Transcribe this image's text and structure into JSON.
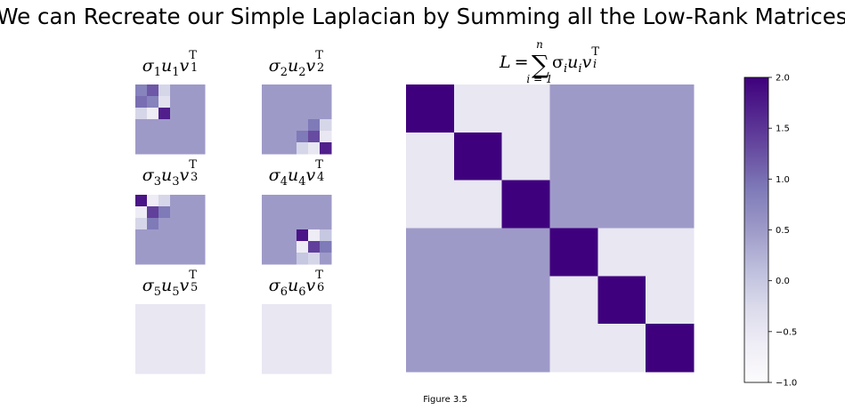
{
  "figure": {
    "title": "We can Recreate our Simple Laplacian by Summing all the Low-Rank Matrices",
    "caption": "Figure 3.5"
  },
  "colormap": {
    "name": "Purples",
    "stops": [
      "#fcfbfd",
      "#efedf5",
      "#dadaeb",
      "#bcbddc",
      "#9e9ac8",
      "#807dba",
      "#6a51a3",
      "#54278f",
      "#3f007d"
    ],
    "vmin": -1,
    "vmax": 2
  },
  "chart_data": {
    "type": "heatmap",
    "small_panels": [
      {
        "sigma_sub": "1",
        "u_sub": "1",
        "v_sub": "1",
        "matrix": [
          [
            0.8,
            1.2,
            -0.2,
            0.5,
            0.5,
            0.5
          ],
          [
            1.0,
            0.8,
            -0.4,
            0.5,
            0.5,
            0.5
          ],
          [
            -0.2,
            -0.6,
            1.7,
            0.5,
            0.5,
            0.5
          ],
          [
            0.5,
            0.5,
            0.5,
            0.5,
            0.5,
            0.5
          ],
          [
            0.5,
            0.5,
            0.5,
            0.5,
            0.5,
            0.5
          ],
          [
            0.5,
            0.5,
            0.5,
            0.5,
            0.5,
            0.5
          ]
        ]
      },
      {
        "sigma_sub": "2",
        "u_sub": "2",
        "v_sub": "2",
        "matrix": [
          [
            0.5,
            0.5,
            0.5,
            0.5,
            0.5,
            0.5
          ],
          [
            0.5,
            0.5,
            0.5,
            0.5,
            0.5,
            0.5
          ],
          [
            0.5,
            0.5,
            0.5,
            0.5,
            0.5,
            0.5
          ],
          [
            0.5,
            0.5,
            0.5,
            0.5,
            0.9,
            -0.2
          ],
          [
            0.5,
            0.5,
            0.5,
            0.9,
            1.3,
            -0.5
          ],
          [
            0.5,
            0.5,
            0.5,
            -0.2,
            -0.5,
            1.7
          ]
        ]
      },
      {
        "sigma_sub": "3",
        "u_sub": "3",
        "v_sub": "3",
        "matrix": [
          [
            1.8,
            -0.6,
            -0.2,
            0.5,
            0.5,
            0.5
          ],
          [
            -0.6,
            1.4,
            0.9,
            0.5,
            0.5,
            0.5
          ],
          [
            -0.2,
            0.9,
            0.5,
            0.5,
            0.5,
            0.5
          ],
          [
            0.5,
            0.5,
            0.5,
            0.5,
            0.5,
            0.5
          ],
          [
            0.5,
            0.5,
            0.5,
            0.5,
            0.5,
            0.5
          ],
          [
            0.5,
            0.5,
            0.5,
            0.5,
            0.5,
            0.5
          ]
        ]
      },
      {
        "sigma_sub": "4",
        "u_sub": "4",
        "v_sub": "4",
        "matrix": [
          [
            0.5,
            0.5,
            0.5,
            0.5,
            0.5,
            0.5
          ],
          [
            0.5,
            0.5,
            0.5,
            0.5,
            0.5,
            0.5
          ],
          [
            0.5,
            0.5,
            0.5,
            0.5,
            0.5,
            0.5
          ],
          [
            0.5,
            0.5,
            0.5,
            1.8,
            -0.6,
            0.0
          ],
          [
            0.5,
            0.5,
            0.5,
            -0.6,
            1.4,
            0.9
          ],
          [
            0.5,
            0.5,
            0.5,
            0.0,
            -0.2,
            0.5
          ]
        ]
      },
      {
        "sigma_sub": "5",
        "u_sub": "5",
        "v_sub": "5",
        "matrix": [
          [
            -0.5,
            -0.5,
            -0.5,
            -0.5,
            -0.5,
            -0.5
          ],
          [
            -0.5,
            -0.5,
            -0.5,
            -0.5,
            -0.5,
            -0.5
          ],
          [
            -0.5,
            -0.5,
            -0.5,
            -0.5,
            -0.5,
            -0.5
          ],
          [
            -0.5,
            -0.5,
            -0.5,
            -0.5,
            -0.5,
            -0.5
          ],
          [
            -0.5,
            -0.5,
            -0.5,
            -0.5,
            -0.5,
            -0.5
          ],
          [
            -0.5,
            -0.5,
            -0.5,
            -0.5,
            -0.5,
            -0.5
          ]
        ]
      },
      {
        "sigma_sub": "6",
        "u_sub": "6",
        "v_sub": "6",
        "matrix": [
          [
            -0.5,
            -0.5,
            -0.5,
            -0.5,
            -0.5,
            -0.5
          ],
          [
            -0.5,
            -0.5,
            -0.5,
            -0.5,
            -0.5,
            -0.5
          ],
          [
            -0.5,
            -0.5,
            -0.5,
            -0.5,
            -0.5,
            -0.5
          ],
          [
            -0.5,
            -0.5,
            -0.5,
            -0.5,
            -0.5,
            -0.5
          ],
          [
            -0.5,
            -0.5,
            -0.5,
            -0.5,
            -0.5,
            -0.5
          ],
          [
            -0.5,
            -0.5,
            -0.5,
            -0.5,
            -0.5,
            -0.5
          ]
        ]
      }
    ],
    "big_panel": {
      "title_lhs": "L = ",
      "sum_symbol": "∑",
      "sum_upper": "n",
      "sum_lower": "i = 1",
      "term_sub": "i",
      "matrix": [
        [
          2,
          -0.5,
          -0.5,
          0.5,
          0.5,
          0.5
        ],
        [
          -0.5,
          2,
          -0.5,
          0.5,
          0.5,
          0.5
        ],
        [
          -0.5,
          -0.5,
          2,
          0.5,
          0.5,
          0.5
        ],
        [
          0.5,
          0.5,
          0.5,
          2,
          -0.5,
          -0.5
        ],
        [
          0.5,
          0.5,
          0.5,
          -0.5,
          2,
          -0.5
        ],
        [
          0.5,
          0.5,
          0.5,
          -0.5,
          -0.5,
          2
        ]
      ]
    },
    "colorbar": {
      "ticks": [
        2.0,
        1.5,
        1.0,
        0.5,
        0.0,
        -0.5,
        -1.0
      ],
      "tick_labels": [
        "2.0",
        "1.5",
        "1.0",
        "0.5",
        "0.0",
        "−0.5",
        "−1.0"
      ]
    }
  }
}
